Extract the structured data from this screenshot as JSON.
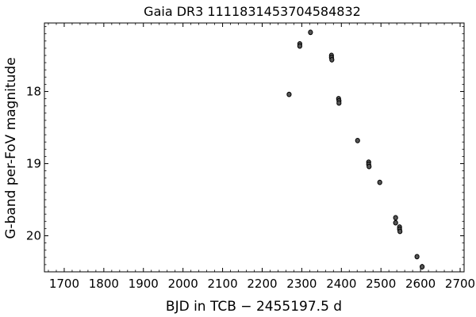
{
  "chart_data": {
    "type": "scatter",
    "title": "Gaia DR3 1111831453704584832",
    "xlabel": "BJD in TCB − 2455197.5 d",
    "ylabel": "G-band per-FoV magnitude",
    "xlim": [
      1650,
      2710
    ],
    "ylim": [
      20.5,
      17.05
    ],
    "y_inverted": true,
    "grid": false,
    "legend": "none",
    "marker_color": "#000000",
    "x_ticks": [
      1700,
      1800,
      1900,
      2000,
      2100,
      2200,
      2300,
      2400,
      2500,
      2600,
      2700
    ],
    "y_ticks": [
      18,
      19,
      20
    ],
    "points": [
      {
        "x": 2268,
        "y": 18.04,
        "err": 0.01
      },
      {
        "x": 2295,
        "y": 17.34,
        "err": 0.01
      },
      {
        "x": 2295,
        "y": 17.37,
        "err": 0.01
      },
      {
        "x": 2322,
        "y": 17.18,
        "err": 0.01
      },
      {
        "x": 2375,
        "y": 17.5,
        "err": 0.01
      },
      {
        "x": 2375,
        "y": 17.53,
        "err": 0.01
      },
      {
        "x": 2376,
        "y": 17.56,
        "err": 0.01
      },
      {
        "x": 2393,
        "y": 18.1,
        "err": 0.01
      },
      {
        "x": 2394,
        "y": 18.13,
        "err": 0.01
      },
      {
        "x": 2394,
        "y": 18.16,
        "err": 0.01
      },
      {
        "x": 2441,
        "y": 18.68,
        "err": 0.01
      },
      {
        "x": 2469,
        "y": 18.98,
        "err": 0.01
      },
      {
        "x": 2469,
        "y": 19.01,
        "err": 0.01
      },
      {
        "x": 2470,
        "y": 19.04,
        "err": 0.01
      },
      {
        "x": 2497,
        "y": 19.26,
        "err": 0.01
      },
      {
        "x": 2537,
        "y": 19.75,
        "err": 0.01
      },
      {
        "x": 2537,
        "y": 19.82,
        "err": 0.01
      },
      {
        "x": 2547,
        "y": 19.88,
        "err": 0.01
      },
      {
        "x": 2547,
        "y": 19.91,
        "err": 0.01
      },
      {
        "x": 2548,
        "y": 19.94,
        "err": 0.01
      },
      {
        "x": 2591,
        "y": 20.29,
        "err": 0.01
      },
      {
        "x": 2604,
        "y": 20.43,
        "err": 0.04
      }
    ]
  }
}
